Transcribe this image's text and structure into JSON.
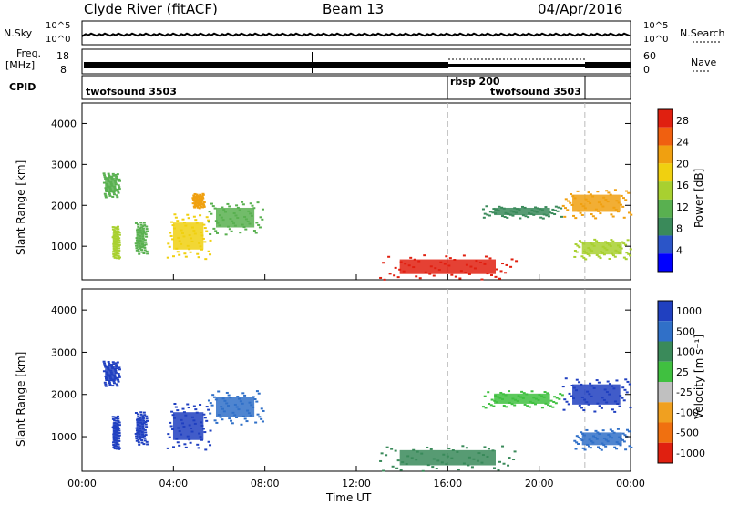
{
  "header": {
    "station": "Clyde River (fitACF)",
    "beam": "Beam 13",
    "date": "04/Apr/2016"
  },
  "top_panels": {
    "nsky_label": "N.Sky",
    "nsearch_label": "N.Search",
    "nsky_ticks": [
      "10^5",
      "10^0"
    ],
    "nsky_ticks_right": [
      "10^5",
      "10^0"
    ],
    "freq_label_1": "Freq.",
    "freq_label_2": "[MHz]",
    "freq_ticks": [
      "18",
      "8"
    ],
    "nave_ticks": [
      "60",
      "0"
    ],
    "nave_label": "Nave",
    "cpid_label": "CPID",
    "cpid_segments": [
      {
        "name": "twofsound 3503",
        "start_h": 0,
        "end_h": 16
      },
      {
        "name": "rbsp 200",
        "start_h": 16,
        "end_h": 22
      },
      {
        "name": "twofsound 3503",
        "start_h": 22,
        "end_h": 24
      }
    ]
  },
  "chart_data": [
    {
      "type": "heatmap",
      "title": "",
      "ylabel": "Slant Range [km]",
      "xlabel": "",
      "xlim": [
        0,
        24
      ],
      "ylim": [
        180,
        4500
      ],
      "yticks": [
        "1000",
        "2000",
        "3000",
        "4000"
      ],
      "colorbar": {
        "label": "Power [dB]",
        "ticks": [
          "4",
          "8",
          "12",
          "16",
          "20",
          "24",
          "28"
        ],
        "range": [
          0,
          30
        ],
        "colors": [
          "#0000ff",
          "#2b55c8",
          "#3a8a5a",
          "#59b050",
          "#a8d030",
          "#f0d010",
          "#f0a010",
          "#f06010",
          "#e02010"
        ]
      },
      "scatter_echoes": [
        {
          "h_start": 0.9,
          "h_end": 1.6,
          "km_start": 2200,
          "km_end": 2800,
          "level": 12
        },
        {
          "h_start": 1.3,
          "h_end": 1.6,
          "km_start": 700,
          "km_end": 1500,
          "level": 14
        },
        {
          "h_start": 2.3,
          "h_end": 2.8,
          "km_start": 800,
          "km_end": 1600,
          "level": 10
        },
        {
          "h_start": 3.7,
          "h_end": 5.6,
          "km_start": 700,
          "km_end": 1800,
          "level": 18
        },
        {
          "h_start": 4.8,
          "h_end": 5.3,
          "km_start": 1950,
          "km_end": 2300,
          "level": 22
        },
        {
          "h_start": 5.5,
          "h_end": 7.9,
          "km_start": 1300,
          "km_end": 2100,
          "level": 12
        },
        {
          "h_start": 13.0,
          "h_end": 19.0,
          "km_start": 200,
          "km_end": 800,
          "level": 28
        },
        {
          "h_start": 17.5,
          "h_end": 21.0,
          "km_start": 1700,
          "km_end": 2000,
          "level": 8
        },
        {
          "h_start": 21.0,
          "h_end": 24.0,
          "km_start": 1700,
          "km_end": 2400,
          "level": 22
        },
        {
          "h_start": 21.5,
          "h_end": 24.0,
          "km_start": 700,
          "km_end": 1200,
          "level": 16
        }
      ]
    },
    {
      "type": "heatmap",
      "title": "",
      "ylabel": "Slant Range [km]",
      "xlabel": "Time UT",
      "xlim": [
        0,
        24
      ],
      "ylim": [
        180,
        4500
      ],
      "yticks": [
        "1000",
        "2000",
        "3000",
        "4000"
      ],
      "xticks": [
        "00:00",
        "04:00",
        "08:00",
        "12:00",
        "16:00",
        "20:00",
        "00:00"
      ],
      "colorbar": {
        "label": "Velocity [m s⁻¹]",
        "ticks": [
          "1000",
          "500",
          "100",
          "25",
          "-25",
          "-100",
          "-500",
          "-1000"
        ],
        "colors": [
          "#2040c0",
          "#3070c8",
          "#3a8a5a",
          "#40c040",
          "#c0c0c0",
          "#f0a020",
          "#f07010",
          "#e02010"
        ]
      },
      "scatter_echoes": [
        {
          "h_start": 0.9,
          "h_end": 1.6,
          "km_start": 2200,
          "km_end": 2800,
          "level": 800
        },
        {
          "h_start": 1.3,
          "h_end": 1.6,
          "km_start": 700,
          "km_end": 1500,
          "level": 800
        },
        {
          "h_start": 2.3,
          "h_end": 2.8,
          "km_start": 800,
          "km_end": 1600,
          "level": 800
        },
        {
          "h_start": 3.7,
          "h_end": 5.6,
          "km_start": 700,
          "km_end": 1800,
          "level": 800
        },
        {
          "h_start": 5.5,
          "h_end": 7.9,
          "km_start": 1300,
          "km_end": 2100,
          "level": 200
        },
        {
          "h_start": 13.0,
          "h_end": 19.0,
          "km_start": 200,
          "km_end": 800,
          "level": 60
        },
        {
          "h_start": 17.5,
          "h_end": 21.0,
          "km_start": 1700,
          "km_end": 2100,
          "level": 0
        },
        {
          "h_start": 21.0,
          "h_end": 24.0,
          "km_start": 1600,
          "km_end": 2400,
          "level": 800
        },
        {
          "h_start": 21.5,
          "h_end": 24.0,
          "km_start": 700,
          "km_end": 1200,
          "level": 200
        }
      ]
    }
  ]
}
